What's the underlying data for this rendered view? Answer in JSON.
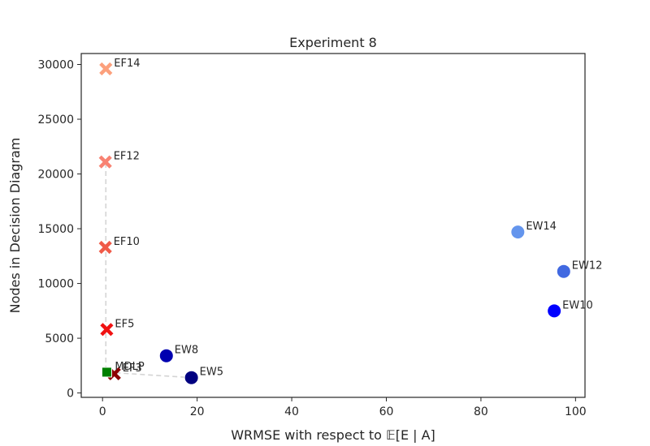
{
  "chart_data": {
    "type": "scatter",
    "title": "Experiment 8",
    "xlabel": "WRMSE with respect to 𝔼[E | A]",
    "ylabel": "Nodes in Decision Diagram",
    "xlim": [
      -4.5,
      102
    ],
    "ylim": [
      -400,
      31000
    ],
    "xticks": [
      0,
      20,
      40,
      60,
      80,
      100
    ],
    "yticks": [
      0,
      5000,
      10000,
      15000,
      20000,
      25000,
      30000
    ],
    "grid": false,
    "pareto_front": [
      [
        0.7,
        21000
      ],
      [
        0.7,
        13300
      ],
      [
        0.7,
        5800
      ],
      [
        0.7,
        1900
      ],
      [
        18.8,
        1400
      ]
    ],
    "points": [
      {
        "label": "EF14",
        "x": 0.7,
        "y": 29600,
        "marker": "x",
        "color": "#fca07c"
      },
      {
        "label": "EF12",
        "x": 0.6,
        "y": 21100,
        "marker": "x",
        "color": "#f88272"
      },
      {
        "label": "EF10",
        "x": 0.6,
        "y": 13300,
        "marker": "x",
        "color": "#f05a48"
      },
      {
        "label": "EF5",
        "x": 0.9,
        "y": 5800,
        "marker": "x",
        "color": "#f01212"
      },
      {
        "label": "EF3",
        "x": 2.5,
        "y": 1750,
        "marker": "x",
        "color": "#8b0000"
      },
      {
        "label": "MDLP",
        "x": 0.9,
        "y": 1900,
        "marker": "square",
        "color": "#008000"
      },
      {
        "label": "EW5",
        "x": 18.8,
        "y": 1400,
        "marker": "circle",
        "color": "#000080"
      },
      {
        "label": "EW8",
        "x": 13.5,
        "y": 3400,
        "marker": "circle",
        "color": "#0000b0"
      },
      {
        "label": "EW10",
        "x": 95.5,
        "y": 7500,
        "marker": "circle",
        "color": "#0000ff"
      },
      {
        "label": "EW12",
        "x": 97.5,
        "y": 11100,
        "marker": "circle",
        "color": "#4169e1"
      },
      {
        "label": "EW14",
        "x": 87.8,
        "y": 14700,
        "marker": "circle",
        "color": "#6495ed"
      }
    ]
  }
}
